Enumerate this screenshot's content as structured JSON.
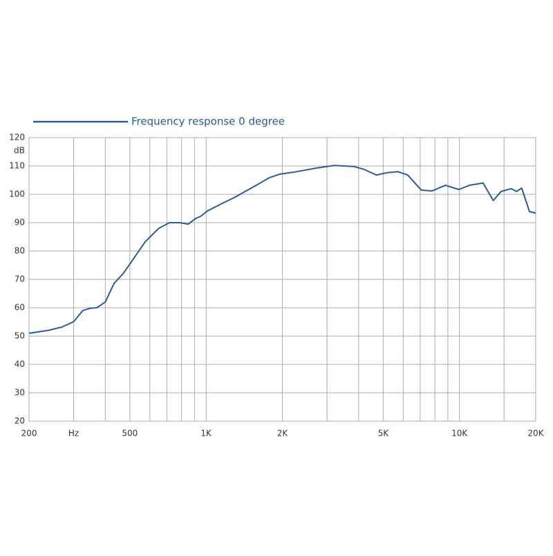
{
  "chart_data": {
    "type": "line",
    "legend_label": "Frequency response 0 degree",
    "y_label": "dB",
    "x_scale": "log",
    "xlim": [
      200,
      20000
    ],
    "ylim": [
      20,
      120
    ],
    "xticks": [
      200,
      {
        "value": 300,
        "label": "Hz"
      },
      500,
      {
        "value": 1000,
        "label": "1K"
      },
      {
        "value": 2000,
        "label": "2K"
      },
      {
        "value": 5000,
        "label": "5K"
      },
      {
        "value": 10000,
        "label": "10K"
      },
      {
        "value": 20000,
        "label": "20K"
      }
    ],
    "x_minor_grid": [
      400,
      600,
      700,
      800,
      900,
      3000,
      4000,
      6000,
      7000,
      8000,
      9000,
      15000
    ],
    "yticks": [
      20,
      30,
      40,
      50,
      60,
      70,
      80,
      90,
      100,
      110,
      120
    ],
    "grid": true,
    "color": "#2b5b9a",
    "x": [
      200,
      238,
      270,
      300,
      326,
      348,
      370,
      400,
      433,
      470,
      508,
      574,
      650,
      716,
      786,
      850,
      909,
      950,
      1010,
      1147,
      1300,
      1520,
      1780,
      1950,
      2280,
      2740,
      3200,
      3840,
      4200,
      4700,
      5170,
      5700,
      6250,
      7070,
      7800,
      8800,
      9950,
      10950,
      12400,
      13600,
      14600,
      16000,
      16800,
      17600,
      18900,
      20000
    ],
    "values": [
      51,
      52,
      53.2,
      55.1,
      59,
      59.8,
      60,
      62,
      68.5,
      72,
      76.3,
      83.2,
      88,
      90,
      90,
      89.5,
      91.5,
      92.2,
      94.1,
      96.6,
      99,
      102.4,
      105.9,
      107.1,
      108,
      109.3,
      110.2,
      109.8,
      108.8,
      106.8,
      107.6,
      108,
      106.8,
      101.5,
      101.2,
      103.2,
      101.7,
      103.2,
      104,
      97.8,
      101,
      102,
      101,
      102.2,
      93.9,
      93.4
    ]
  }
}
